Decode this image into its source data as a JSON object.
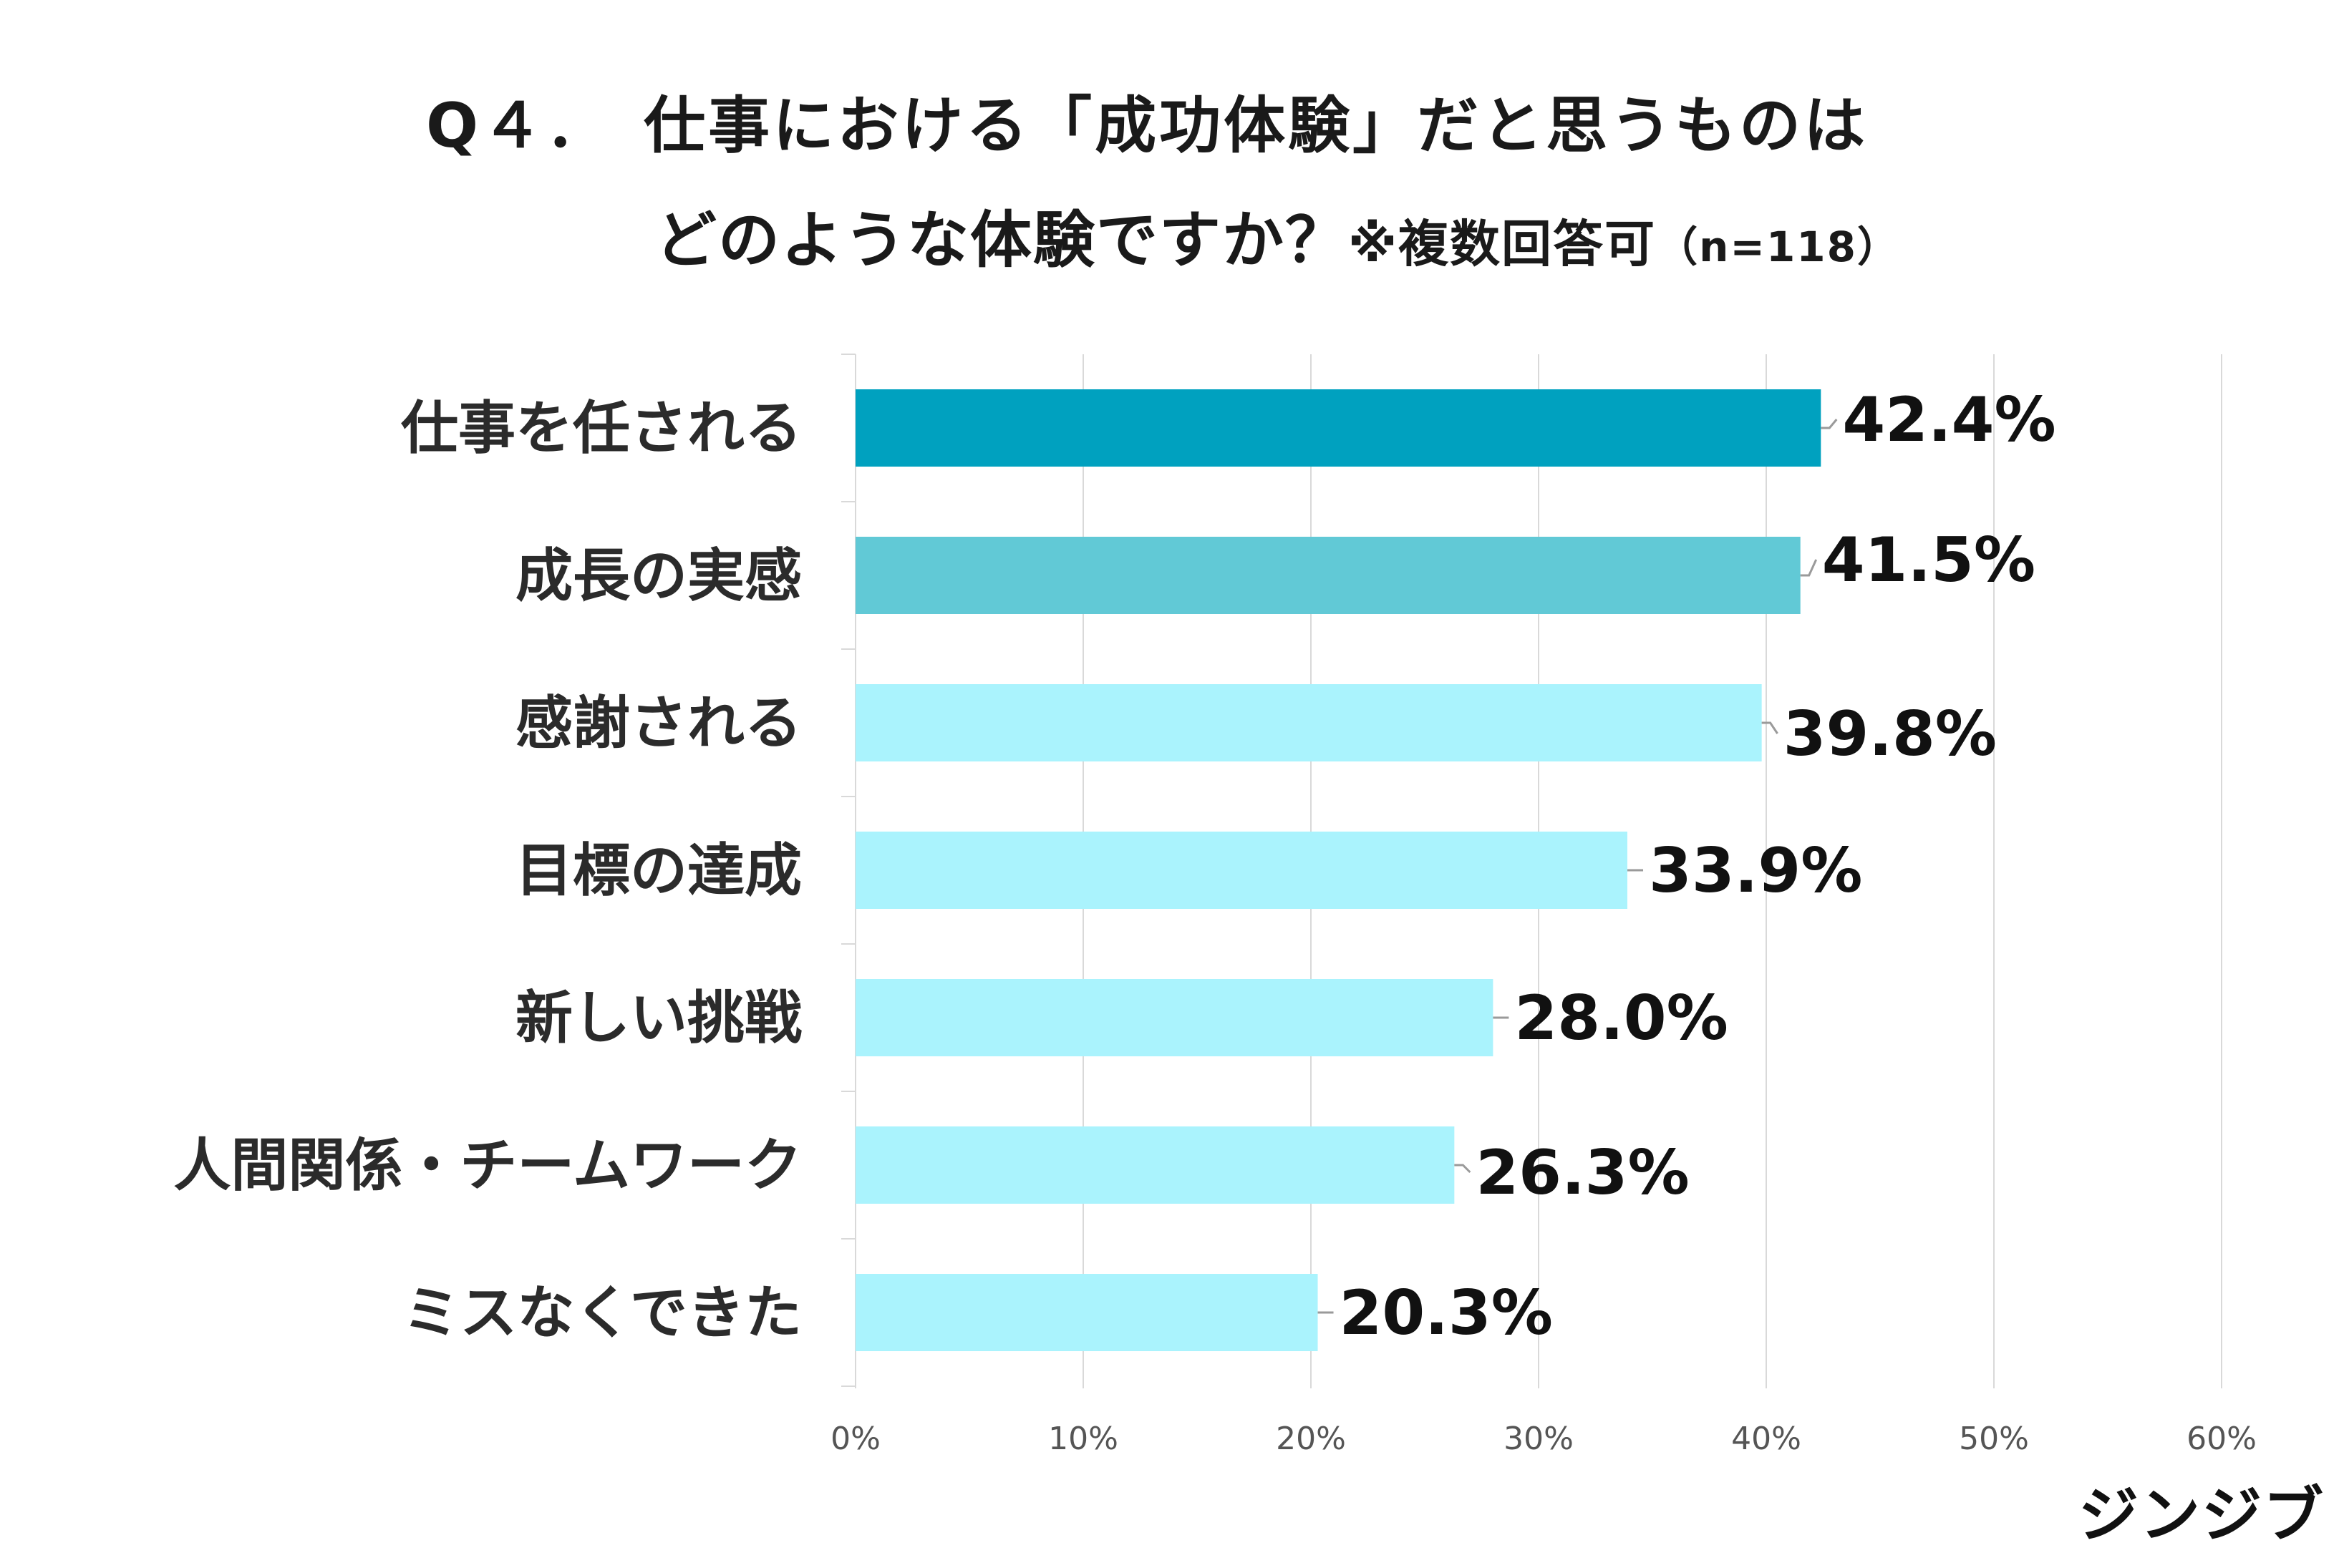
{
  "title": {
    "line1": "Q４．　仕事における「成功体験」だと思うものは",
    "line2_main": "どのような体験ですか？",
    "note": "※複数回答可",
    "n": "（n=118）"
  },
  "brand": "ジンジブ",
  "chart_data": {
    "type": "bar",
    "orientation": "horizontal",
    "categories": [
      "仕事を任される",
      "成長の実感",
      "感謝される",
      "目標の達成",
      "新しい挑戦",
      "人間関係・チームワーク",
      "ミスなくできた"
    ],
    "values": [
      42.4,
      41.5,
      39.8,
      33.9,
      28.0,
      26.3,
      20.3
    ],
    "value_labels": [
      "42.4%",
      "41.5%",
      "39.8%",
      "33.9%",
      "28.0%",
      "26.3%",
      "20.3%"
    ],
    "colors": [
      "#00a1bf",
      "#61c9d6",
      "#aaf3fd",
      "#aaf3fd",
      "#aaf3fd",
      "#aaf3fd",
      "#aaf3fd"
    ],
    "xlim": [
      0,
      60
    ],
    "xticks": [
      0,
      10,
      20,
      30,
      40,
      50,
      60
    ],
    "xtick_labels": [
      "0%",
      "10%",
      "20%",
      "30%",
      "40%",
      "50%",
      "60%"
    ],
    "grid": true,
    "legend": "none"
  }
}
